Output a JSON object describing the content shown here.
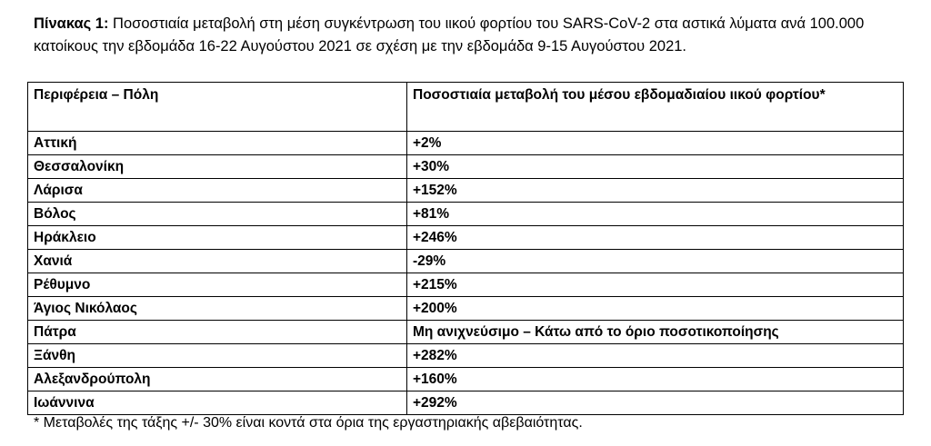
{
  "caption": {
    "lead": "Πίνακας 1:",
    "text": " Ποσοστιαία μεταβολή στη μέση συγκέντρωση του ιικού φορτίου του SARS-CoV-2 στα αστικά λύματα ανά 100.000 κατοίκους την εβδομάδα 16-22 Αυγούστου 2021 σε σχέση με την εβδομάδα 9-15 Αυγούστου 2021."
  },
  "table": {
    "headers": [
      "Περιφέρεια – Πόλη",
      "Ποσοστιαία μεταβολή του μέσου εβδομαδιαίου ιικού φορτίου*"
    ],
    "rows": [
      [
        "Αττική",
        "+2%"
      ],
      [
        "Θεσσαλονίκη",
        "+30%"
      ],
      [
        "Λάρισα",
        "+152%"
      ],
      [
        "Βόλος",
        "+81%"
      ],
      [
        "Ηράκλειο",
        "+246%"
      ],
      [
        "Χανιά",
        "-29%"
      ],
      [
        "Ρέθυμνο",
        "+215%"
      ],
      [
        "Άγιος Νικόλαος",
        "+200%"
      ],
      [
        "Πάτρα",
        "Μη ανιχνεύσιμο – Κάτω από το όριο ποσοτικοποίησης"
      ],
      [
        "Ξάνθη",
        "+282%"
      ],
      [
        "Αλεξανδρούπολη",
        "+160%"
      ],
      [
        "Ιωάννινα",
        "+292%"
      ]
    ]
  },
  "footnote": "* Μεταβολές της τάξης +/- 30% είναι κοντά στα όρια της εργαστηριακής αβεβαιότητας."
}
